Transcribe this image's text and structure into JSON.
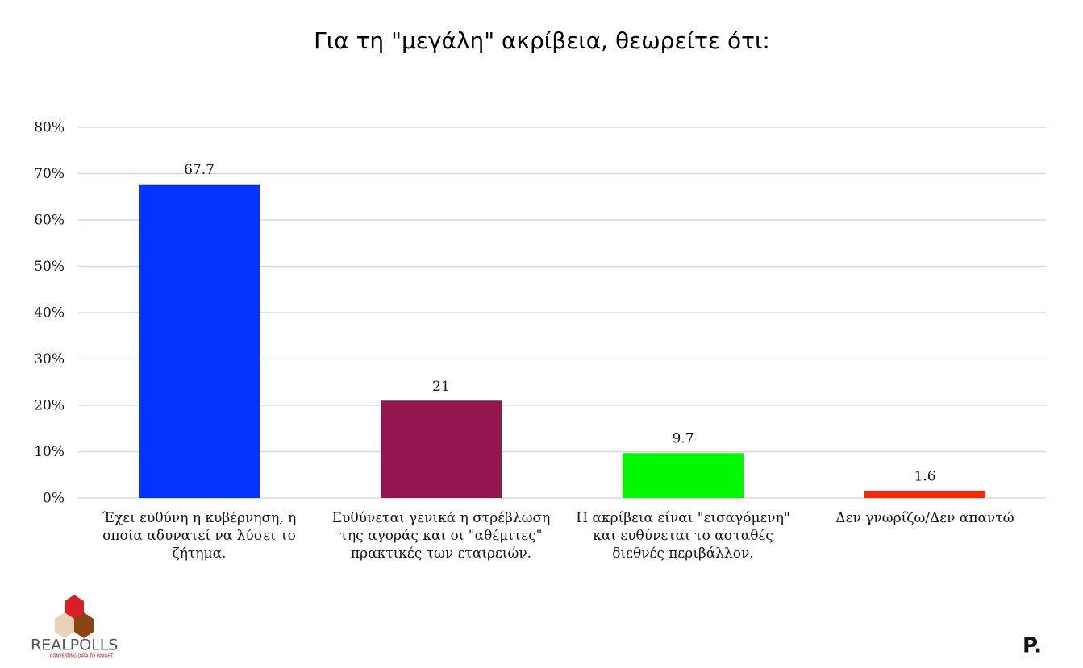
{
  "chart_data": {
    "type": "bar",
    "title": "Για τη \"μεγάλη\" ακρίβεια, θεωρείτε ότι:",
    "categories": [
      "Έχει ευθύνη  η κυβέρνηση,  η οποία αδυνατεί να λύσει το ζήτημα.",
      "Ευθύνεται γενικά η στρέβλωση της αγοράς και οι \"αθέμιτες\" πρακτικές των εταιρειών.",
      "Η ακρίβεια είναι \"εισαγόμενη\"  και ευθύνεται  το ασταθές  διεθνές περιβάλλον.",
      "Δεν γνωρίζω/Δεν απαντώ"
    ],
    "values": [
      67.7,
      21,
      9.7,
      1.6
    ],
    "colors": [
      "#0433ff",
      "#941651",
      "#00f900",
      "#ff2600"
    ],
    "ylim": [
      0,
      80
    ],
    "yticks": [
      {
        "value": 0,
        "label": "0%"
      },
      {
        "value": 10,
        "label": "10%"
      },
      {
        "value": 20,
        "label": "20%"
      },
      {
        "value": 30,
        "label": "30%"
      },
      {
        "value": 40,
        "label": "40%"
      },
      {
        "value": 50,
        "label": "50%"
      },
      {
        "value": 60,
        "label": "60%"
      },
      {
        "value": 70,
        "label": "70%"
      },
      {
        "value": 80,
        "label": "80%"
      }
    ],
    "grid": true
  },
  "branding": {
    "left": "REALPOLLS",
    "tagline": "CONVERTING DATA TO INSIGHT",
    "right": "P."
  }
}
